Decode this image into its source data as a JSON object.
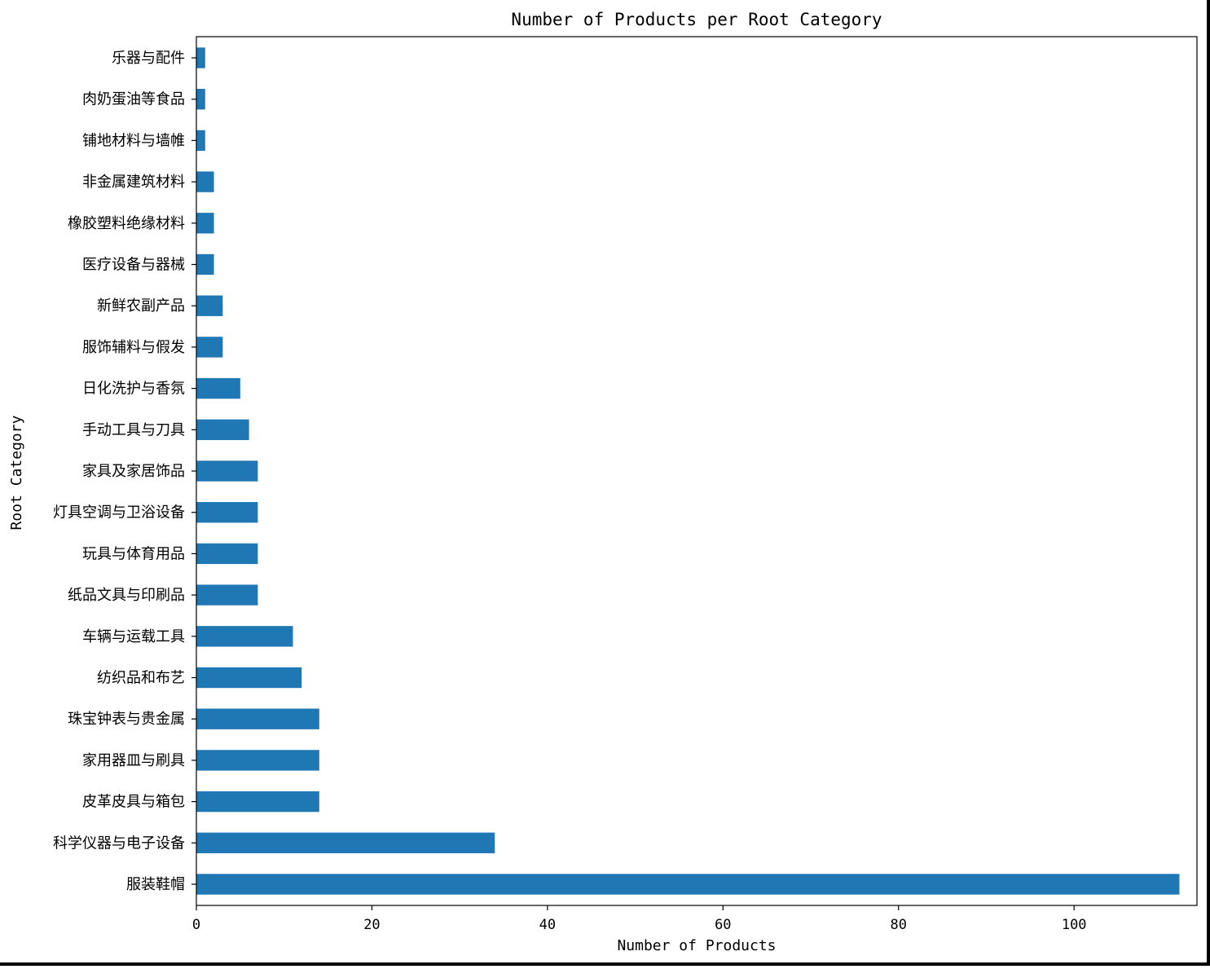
{
  "chart_data": {
    "type": "bar",
    "orientation": "horizontal",
    "title": "Number of Products per Root Category",
    "xlabel": "Number of Products",
    "ylabel": "Root Category",
    "xlim": [
      0,
      114
    ],
    "xticks": [
      0,
      20,
      40,
      60,
      80,
      100
    ],
    "grid": false,
    "bar_color": "#1f77b4",
    "categories": [
      "乐器与配件",
      "肉奶蛋油等食品",
      "铺地材料与墙帷",
      "非金属建筑材料",
      "橡胶塑料绝缘材料",
      "医疗设备与器械",
      "新鲜农副产品",
      "服饰辅料与假发",
      "日化洗护与香氛",
      "手动工具与刀具",
      "家具及家居饰品",
      "灯具空调与卫浴设备",
      "玩具与体育用品",
      "纸品文具与印刷品",
      "车辆与运载工具",
      "纺织品和布艺",
      "珠宝钟表与贵金属",
      "家用器皿与刷具",
      "皮革皮具与箱包",
      "科学仪器与电子设备",
      "服装鞋帽"
    ],
    "values": [
      1,
      1,
      1,
      2,
      2,
      2,
      3,
      3,
      5,
      6,
      7,
      7,
      7,
      7,
      11,
      12,
      14,
      14,
      14,
      34,
      112
    ]
  }
}
